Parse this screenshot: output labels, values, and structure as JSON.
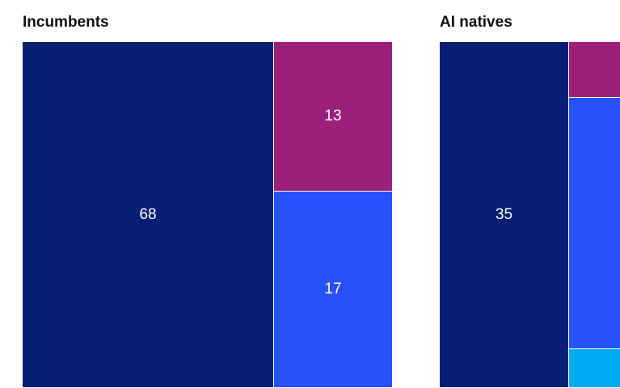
{
  "colors": {
    "navy": "#071f74",
    "magenta": "#9c2079",
    "blue": "#2651fd",
    "cyan": "#00a9f4",
    "background": "#ffffff",
    "text": "#111111"
  },
  "chart_data": [
    {
      "type": "treemap",
      "title": "Incumbents",
      "cells": [
        {
          "value": 68,
          "label": "68",
          "color": "#071f74"
        },
        {
          "value": 13,
          "label": "13",
          "color": "#9c2079"
        },
        {
          "value": 17,
          "label": "17",
          "color": "#2651fd"
        }
      ]
    },
    {
      "type": "treemap",
      "title": "AI natives",
      "cells": [
        {
          "value": 35,
          "label": "35",
          "color": "#071f74"
        },
        {
          "value": 10,
          "label": "",
          "color": "#9c2079"
        },
        {
          "value": 45,
          "label": "",
          "color": "#2651fd"
        },
        {
          "value": 7,
          "label": "",
          "color": "#00a9f4"
        }
      ]
    }
  ]
}
